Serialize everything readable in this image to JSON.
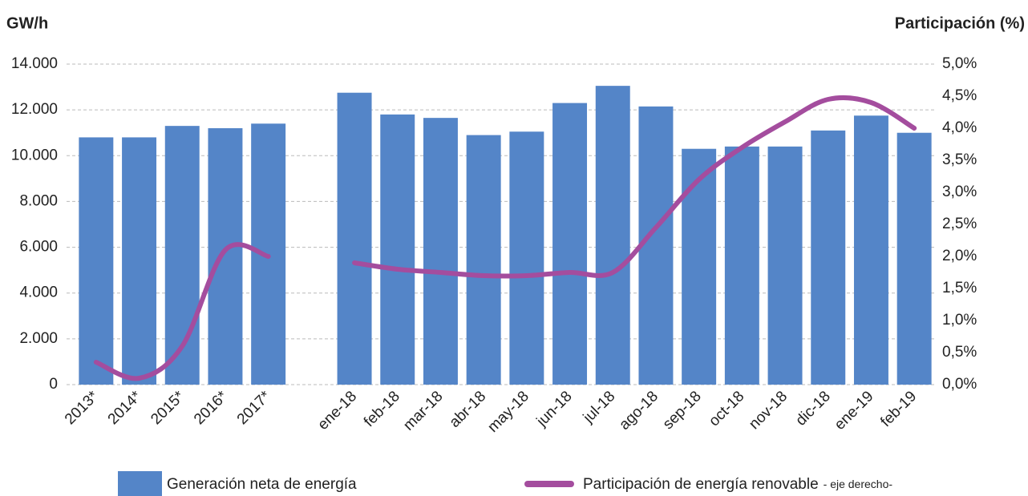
{
  "chart_data": {
    "type": "bar-line",
    "y_label": "GW/h",
    "y2_label": "Participación (%)",
    "categories": [
      "2013*",
      "2014*",
      "2015*",
      "2016*",
      "2017*",
      null,
      "ene-18",
      "feb-18",
      "mar-18",
      "abr-18",
      "may-18",
      "jun-18",
      "jul-18",
      "ago-18",
      "sep-18",
      "oct-18",
      "nov-18",
      "dic-18",
      "ene-19",
      "feb-19"
    ],
    "series": [
      {
        "name": "Generación neta de energía",
        "type": "bar",
        "color": "#5485c8",
        "values": [
          10800,
          10800,
          11300,
          11200,
          11400,
          null,
          12750,
          11800,
          11650,
          10900,
          11050,
          12300,
          13050,
          12150,
          10300,
          10400,
          10400,
          11100,
          11750,
          11000
        ]
      },
      {
        "name": "Participación de energía renovable",
        "type": "line",
        "axis": "y2",
        "color": "#a44d9e",
        "values": [
          0.35,
          0.1,
          0.6,
          2.1,
          2.0,
          null,
          1.9,
          1.8,
          1.75,
          1.7,
          1.7,
          1.75,
          1.75,
          2.45,
          3.2,
          3.7,
          4.1,
          4.45,
          4.4,
          4.0
        ]
      }
    ],
    "legend_note": "- eje derecho-",
    "ylim": [
      0,
      14000
    ],
    "yticks": [
      0,
      {
        "value": 2000,
        "label": "2.000"
      },
      {
        "value": 4000,
        "label": "4.000"
      },
      {
        "value": 6000,
        "label": "6.000"
      },
      {
        "value": 8000,
        "label": "8.000"
      },
      {
        "value": 10000,
        "label": "10.000"
      },
      {
        "value": 12000,
        "label": "12.000"
      },
      {
        "value": 14000,
        "label": "14.000"
      }
    ],
    "y2lim": [
      0,
      5
    ],
    "y2ticks": [
      {
        "value": 0,
        "label": "0,0%"
      },
      {
        "value": 0.5,
        "label": "0,5%"
      },
      {
        "value": 1,
        "label": "1,0%"
      },
      {
        "value": 1.5,
        "label": "1,5%"
      },
      {
        "value": 2,
        "label": "2,0%"
      },
      {
        "value": 2.5,
        "label": "2,5%"
      },
      {
        "value": 3,
        "label": "3,0%"
      },
      {
        "value": 3.5,
        "label": "3,5%"
      },
      {
        "value": 4,
        "label": "4,0%"
      },
      {
        "value": 4.5,
        "label": "4,5%"
      },
      {
        "value": 5,
        "label": "5,0%"
      }
    ],
    "grid": true
  }
}
